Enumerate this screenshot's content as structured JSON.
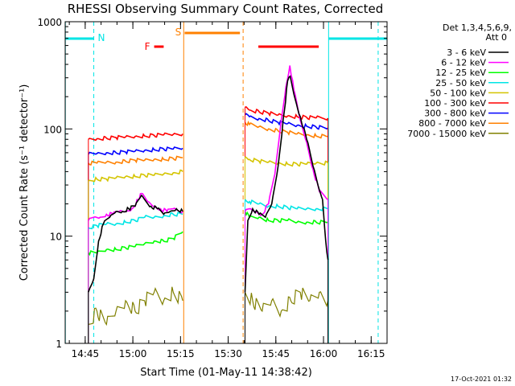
{
  "chart_data": {
    "type": "line",
    "title": "RHESSI Observing Summary Count Rates, Corrected",
    "xlabel": "Start Time (01-May-11 14:38:42)",
    "ylabel": "Corrected Count Rate (s⁻¹ detector⁻¹)",
    "yscale": "log",
    "ylim": [
      1,
      1000
    ],
    "xlim_minutes_after_1438_42": [
      0,
      101.3
    ],
    "x_ticks": [
      {
        "label": "14:45",
        "t": 6.3
      },
      {
        "label": "15:00",
        "t": 21.3
      },
      {
        "label": "15:15",
        "t": 36.3
      },
      {
        "label": "15:30",
        "t": 51.3
      },
      {
        "label": "15:45",
        "t": 66.3
      },
      {
        "label": "16:00",
        "t": 81.3
      },
      {
        "label": "16:15",
        "t": 96.3
      }
    ],
    "y_ticks": [
      {
        "label": "1",
        "v": 1
      },
      {
        "label": "10",
        "v": 10
      },
      {
        "label": "100",
        "v": 100
      },
      {
        "label": "1000",
        "v": 1000
      }
    ],
    "legend_title_1": "Det 1,3,4,5,6,9,",
    "legend_title_2": "Att 0",
    "legend_position": "top-right, outside plot",
    "markers": {
      "N": {
        "label": "N",
        "color": "#00e5e5"
      },
      "S": {
        "label": "S",
        "color": "#ff8000"
      },
      "F": {
        "label": "F",
        "color": "#ff0000"
      }
    },
    "data_gaps_minutes": [
      [
        0,
        7.3
      ],
      [
        37.3,
        56.6
      ],
      [
        82.7,
        101.3
      ]
    ],
    "series": [
      {
        "name": "3 - 6 keV",
        "color": "#000000",
        "seg1": [
          [
            7.3,
            3
          ],
          [
            9,
            4
          ],
          [
            10.5,
            9
          ],
          [
            12,
            13
          ],
          [
            14,
            15
          ],
          [
            16,
            17
          ],
          [
            18,
            17
          ],
          [
            20,
            18
          ],
          [
            22,
            19
          ],
          [
            24,
            24
          ],
          [
            25,
            22
          ],
          [
            27,
            19
          ],
          [
            29,
            18
          ],
          [
            31,
            16
          ],
          [
            33,
            17
          ],
          [
            35,
            18
          ],
          [
            37,
            17
          ]
        ],
        "seg2": [
          [
            56.6,
            3
          ],
          [
            57.5,
            14
          ],
          [
            59,
            18
          ],
          [
            61,
            16
          ],
          [
            63,
            15
          ],
          [
            65,
            20
          ],
          [
            67,
            45
          ],
          [
            69,
            150
          ],
          [
            70,
            280
          ],
          [
            70.8,
            310
          ],
          [
            72,
            210
          ],
          [
            74,
            130
          ],
          [
            76,
            80
          ],
          [
            78,
            45
          ],
          [
            80,
            27
          ],
          [
            81,
            22
          ],
          [
            82,
            9
          ],
          [
            82.7,
            6
          ]
        ]
      },
      {
        "name": "6 - 12 keV",
        "color": "#ff00ff",
        "seg1": [
          [
            7.3,
            14
          ],
          [
            9,
            15
          ],
          [
            11,
            15
          ],
          [
            13,
            16
          ],
          [
            15,
            16
          ],
          [
            17,
            17
          ],
          [
            19,
            17
          ],
          [
            21,
            18
          ],
          [
            23,
            22
          ],
          [
            24,
            25
          ],
          [
            26,
            21
          ],
          [
            28,
            19
          ],
          [
            30,
            18
          ],
          [
            32,
            17
          ],
          [
            34,
            18
          ],
          [
            37,
            17
          ]
        ],
        "seg2": [
          [
            56.6,
            17
          ],
          [
            58,
            18
          ],
          [
            60,
            17
          ],
          [
            62,
            16
          ],
          [
            64,
            20
          ],
          [
            66,
            38
          ],
          [
            68,
            120
          ],
          [
            69.5,
            250
          ],
          [
            70.7,
            390
          ],
          [
            72,
            230
          ],
          [
            74,
            120
          ],
          [
            76,
            75
          ],
          [
            78,
            42
          ],
          [
            80,
            26
          ],
          [
            82.7,
            22
          ]
        ]
      },
      {
        "name": "12 - 25 keV",
        "color": "#00ff00",
        "seg1": [
          [
            7.3,
            7
          ],
          [
            10,
            7
          ],
          [
            13,
            7.5
          ],
          [
            16,
            7.5
          ],
          [
            19,
            7.8
          ],
          [
            22,
            8
          ],
          [
            25,
            8.5
          ],
          [
            28,
            9
          ],
          [
            31,
            9
          ],
          [
            34,
            9.5
          ],
          [
            37,
            11
          ]
        ],
        "seg2": [
          [
            56.6,
            17
          ],
          [
            58,
            15
          ],
          [
            61,
            15
          ],
          [
            64,
            14
          ],
          [
            67,
            14
          ],
          [
            70,
            14
          ],
          [
            73,
            13.5
          ],
          [
            76,
            13.5
          ],
          [
            79,
            13.5
          ],
          [
            82.7,
            13.5
          ]
        ]
      },
      {
        "name": "25 - 50 keV",
        "color": "#00e5e5",
        "seg1": [
          [
            7.3,
            12
          ],
          [
            10,
            12.5
          ],
          [
            13,
            13
          ],
          [
            16,
            13
          ],
          [
            19,
            13.5
          ],
          [
            22,
            14
          ],
          [
            25,
            15
          ],
          [
            28,
            15
          ],
          [
            31,
            15.5
          ],
          [
            34,
            16
          ],
          [
            37,
            16
          ]
        ],
        "seg2": [
          [
            56.6,
            22
          ],
          [
            58,
            21
          ],
          [
            61,
            20
          ],
          [
            64,
            19
          ],
          [
            67,
            19
          ],
          [
            70,
            18.5
          ],
          [
            73,
            18
          ],
          [
            76,
            18
          ],
          [
            79,
            18
          ],
          [
            82.7,
            18
          ]
        ]
      },
      {
        "name": "50 - 100 keV",
        "color": "#d4c400",
        "seg1": [
          [
            7.3,
            33
          ],
          [
            10,
            34
          ],
          [
            13,
            34
          ],
          [
            16,
            35
          ],
          [
            19,
            36
          ],
          [
            22,
            36
          ],
          [
            25,
            37
          ],
          [
            28,
            37
          ],
          [
            31,
            38
          ],
          [
            34,
            39
          ],
          [
            37,
            40
          ]
        ],
        "seg2": [
          [
            56.6,
            55
          ],
          [
            58,
            52
          ],
          [
            61,
            50
          ],
          [
            64,
            49
          ],
          [
            67,
            48
          ],
          [
            70,
            47
          ],
          [
            73,
            47
          ],
          [
            76,
            47
          ],
          [
            79,
            48
          ],
          [
            82.7,
            48
          ]
        ]
      },
      {
        "name": "100 - 300 keV",
        "color": "#ff0000",
        "seg1": [
          [
            7.3,
            80
          ],
          [
            10,
            81
          ],
          [
            13,
            82
          ],
          [
            16,
            83
          ],
          [
            19,
            84
          ],
          [
            22,
            85
          ],
          [
            25,
            86
          ],
          [
            28,
            87
          ],
          [
            31,
            88
          ],
          [
            34,
            89
          ],
          [
            37,
            90
          ]
        ],
        "seg2": [
          [
            56.6,
            160
          ],
          [
            58,
            150
          ],
          [
            61,
            145
          ],
          [
            64,
            140
          ],
          [
            67,
            135
          ],
          [
            70,
            132
          ],
          [
            73,
            130
          ],
          [
            76,
            128
          ],
          [
            79,
            127
          ],
          [
            82.7,
            126
          ]
        ]
      },
      {
        "name": "300 - 800 keV",
        "color": "#0000ff",
        "seg1": [
          [
            7.3,
            58
          ],
          [
            10,
            59
          ],
          [
            13,
            60
          ],
          [
            16,
            60
          ],
          [
            19,
            61
          ],
          [
            22,
            62
          ],
          [
            25,
            63
          ],
          [
            28,
            64
          ],
          [
            31,
            65
          ],
          [
            34,
            65
          ],
          [
            37,
            66
          ]
        ],
        "seg2": [
          [
            56.6,
            135
          ],
          [
            58,
            130
          ],
          [
            61,
            125
          ],
          [
            64,
            120
          ],
          [
            67,
            115
          ],
          [
            70,
            112
          ],
          [
            73,
            108
          ],
          [
            76,
            106
          ],
          [
            79,
            104
          ],
          [
            82.7,
            102
          ]
        ]
      },
      {
        "name": "800 - 7000 keV",
        "color": "#ff8000",
        "seg1": [
          [
            7.3,
            48
          ],
          [
            10,
            48
          ],
          [
            13,
            49
          ],
          [
            16,
            49
          ],
          [
            19,
            50
          ],
          [
            22,
            51
          ],
          [
            25,
            51
          ],
          [
            28,
            52
          ],
          [
            31,
            52
          ],
          [
            34,
            53
          ],
          [
            37,
            54
          ]
        ],
        "seg2": [
          [
            56.6,
            115
          ],
          [
            58,
            110
          ],
          [
            61,
            105
          ],
          [
            64,
            100
          ],
          [
            67,
            96
          ],
          [
            70,
            93
          ],
          [
            73,
            90
          ],
          [
            76,
            88
          ],
          [
            79,
            86
          ],
          [
            82.7,
            85
          ]
        ]
      },
      {
        "name": "7000 - 15000 keV",
        "color": "#808000",
        "seg1": [
          [
            7.3,
            1.5
          ],
          [
            10,
            2
          ],
          [
            13,
            1.5
          ],
          [
            16,
            2
          ],
          [
            19,
            2.5
          ],
          [
            22,
            2
          ],
          [
            25,
            2.5
          ],
          [
            28,
            3
          ],
          [
            31,
            2.5
          ],
          [
            34,
            3
          ],
          [
            37,
            2.5
          ]
        ],
        "seg2": [
          [
            56.6,
            3
          ],
          [
            59,
            2.5
          ],
          [
            62,
            2
          ],
          [
            65,
            2.5
          ],
          [
            68,
            2
          ],
          [
            71,
            2.5
          ],
          [
            74,
            3
          ],
          [
            77,
            2.5
          ],
          [
            80,
            3
          ],
          [
            82.7,
            2.5
          ]
        ]
      }
    ]
  },
  "timestamp": "17-Oct-2021 01:32"
}
